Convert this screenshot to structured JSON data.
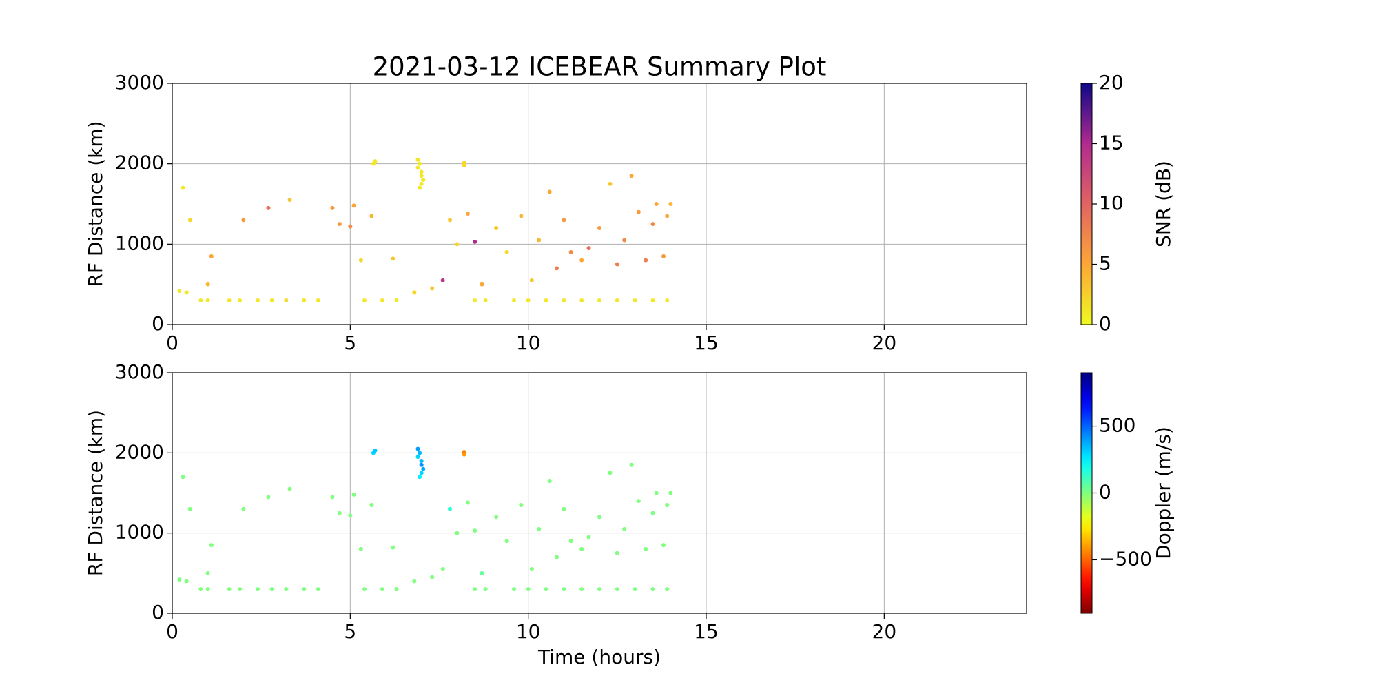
{
  "chart_data": [
    {
      "type": "scatter",
      "title": "2021-03-12 ICEBEAR Summary Plot",
      "y_label": "RF Distance (km)",
      "colorbar_label": "SNR (dB)",
      "colormap": "plasma_r",
      "xlim": [
        0,
        24
      ],
      "ylim": [
        0,
        3000
      ],
      "xticks": [
        0,
        5,
        10,
        15,
        20
      ],
      "yticks": [
        0,
        1000,
        2000,
        3000
      ],
      "clim": [
        0,
        20
      ],
      "cticks": [
        0,
        5,
        10,
        15,
        20
      ],
      "grid": true,
      "x": [
        0.2,
        0.4,
        0.3,
        0.5,
        0.8,
        1.0,
        1.0,
        1.1,
        1.6,
        1.9,
        2.0,
        2.4,
        2.7,
        2.8,
        3.2,
        3.3,
        3.7,
        4.1,
        4.5,
        4.7,
        5.0,
        5.1,
        5.3,
        5.4,
        5.6,
        5.65,
        5.7,
        5.9,
        6.2,
        6.3,
        6.8,
        6.9,
        6.9,
        6.95,
        6.95,
        7.0,
        7.0,
        7.05,
        7.0,
        7.3,
        7.6,
        7.8,
        8.0,
        8.2,
        8.2,
        8.3,
        8.5,
        8.5,
        8.7,
        8.8,
        9.1,
        9.4,
        9.6,
        9.8,
        10.0,
        10.1,
        10.3,
        10.5,
        10.6,
        10.8,
        11.0,
        11.0,
        11.2,
        11.5,
        11.5,
        11.7,
        12.0,
        12.0,
        12.3,
        12.5,
        12.5,
        12.7,
        12.9,
        13.0,
        13.1,
        13.3,
        13.5,
        13.5,
        13.6,
        13.8,
        13.9,
        13.9,
        14.0
      ],
      "y": [
        420,
        400,
        1700,
        1300,
        300,
        300,
        500,
        850,
        300,
        300,
        1300,
        300,
        1450,
        300,
        300,
        1550,
        300,
        300,
        1450,
        1250,
        1220,
        1480,
        800,
        300,
        1350,
        2000,
        2030,
        300,
        820,
        300,
        400,
        2050,
        1950,
        2000,
        1700,
        1900,
        1850,
        1800,
        1750,
        450,
        550,
        1300,
        1000,
        2010,
        1980,
        1380,
        1030,
        300,
        500,
        300,
        1200,
        900,
        300,
        1350,
        300,
        550,
        1050,
        300,
        1650,
        700,
        1300,
        300,
        900,
        800,
        300,
        950,
        1200,
        300,
        1750,
        750,
        300,
        1050,
        1850,
        300,
        1400,
        800,
        1250,
        300,
        1500,
        850,
        1350,
        300,
        1500
      ],
      "c": [
        1,
        1,
        1,
        2,
        1,
        1,
        4,
        5,
        1,
        1,
        6,
        1,
        9,
        1,
        2,
        3,
        1,
        1,
        6,
        6,
        7,
        5,
        2,
        1,
        4,
        1,
        1,
        1,
        3,
        1,
        2,
        1,
        1,
        1,
        1,
        1,
        1,
        1,
        1,
        3,
        14,
        3,
        2,
        2,
        2,
        5,
        15,
        1,
        5,
        1,
        3,
        2,
        1,
        4,
        1,
        3,
        4,
        1,
        5,
        8,
        6,
        1,
        7,
        5,
        1,
        9,
        6,
        1,
        3,
        8,
        1,
        7,
        5,
        1,
        6,
        8,
        7,
        1,
        5,
        6,
        5,
        1,
        4
      ]
    },
    {
      "type": "scatter",
      "x_label": "Time (hours)",
      "y_label": "RF Distance (km)",
      "colorbar_label": "Doppler (m/s)",
      "colormap": "jet_r",
      "xlim": [
        0,
        24
      ],
      "ylim": [
        0,
        3000
      ],
      "xticks": [
        0,
        5,
        10,
        15,
        20
      ],
      "yticks": [
        0,
        1000,
        2000,
        3000
      ],
      "clim": [
        -900,
        900
      ],
      "cticks": [
        {
          "value": -500,
          "label": "−500"
        },
        0,
        500
      ],
      "grid": true,
      "x": [
        0.2,
        0.4,
        0.3,
        0.5,
        0.8,
        1.0,
        1.0,
        1.1,
        1.6,
        1.9,
        2.0,
        2.4,
        2.7,
        2.8,
        3.2,
        3.3,
        3.7,
        4.1,
        4.5,
        4.7,
        5.0,
        5.1,
        5.3,
        5.4,
        5.6,
        5.65,
        5.7,
        5.9,
        6.2,
        6.3,
        6.8,
        6.9,
        6.9,
        6.95,
        6.95,
        7.0,
        7.0,
        7.05,
        7.0,
        7.3,
        7.6,
        7.8,
        8.0,
        8.2,
        8.2,
        8.3,
        8.5,
        8.5,
        8.7,
        8.8,
        9.1,
        9.4,
        9.6,
        9.8,
        10.0,
        10.1,
        10.3,
        10.5,
        10.6,
        10.8,
        11.0,
        11.0,
        11.2,
        11.5,
        11.5,
        11.7,
        12.0,
        12.0,
        12.3,
        12.5,
        12.5,
        12.7,
        12.9,
        13.0,
        13.1,
        13.3,
        13.5,
        13.5,
        13.6,
        13.8,
        13.9,
        13.9,
        14.0
      ],
      "y": [
        420,
        400,
        1700,
        1300,
        300,
        300,
        500,
        850,
        300,
        300,
        1300,
        300,
        1450,
        300,
        300,
        1550,
        300,
        300,
        1450,
        1250,
        1220,
        1480,
        800,
        300,
        1350,
        2000,
        2030,
        300,
        820,
        300,
        400,
        2050,
        1950,
        2000,
        1700,
        1900,
        1850,
        1800,
        1750,
        450,
        550,
        1300,
        1000,
        2010,
        1980,
        1380,
        1030,
        300,
        500,
        300,
        1200,
        900,
        300,
        1350,
        300,
        550,
        1050,
        300,
        1650,
        700,
        1300,
        300,
        900,
        800,
        300,
        950,
        1200,
        300,
        1750,
        750,
        300,
        1050,
        1850,
        300,
        1400,
        800,
        1250,
        300,
        1500,
        850,
        1350,
        300,
        1500
      ],
      "c": [
        0,
        0,
        0,
        0,
        0,
        0,
        0,
        0,
        0,
        0,
        0,
        0,
        0,
        0,
        0,
        0,
        0,
        0,
        0,
        0,
        0,
        0,
        0,
        0,
        0,
        300,
        320,
        0,
        0,
        0,
        0,
        400,
        300,
        350,
        250,
        350,
        420,
        380,
        300,
        0,
        0,
        150,
        0,
        -450,
        -400,
        0,
        0,
        0,
        50,
        0,
        0,
        0,
        0,
        0,
        0,
        0,
        0,
        0,
        0,
        0,
        0,
        0,
        0,
        0,
        0,
        0,
        0,
        0,
        0,
        0,
        0,
        0,
        0,
        0,
        0,
        0,
        0,
        0,
        0,
        0,
        0,
        0,
        0
      ]
    }
  ]
}
